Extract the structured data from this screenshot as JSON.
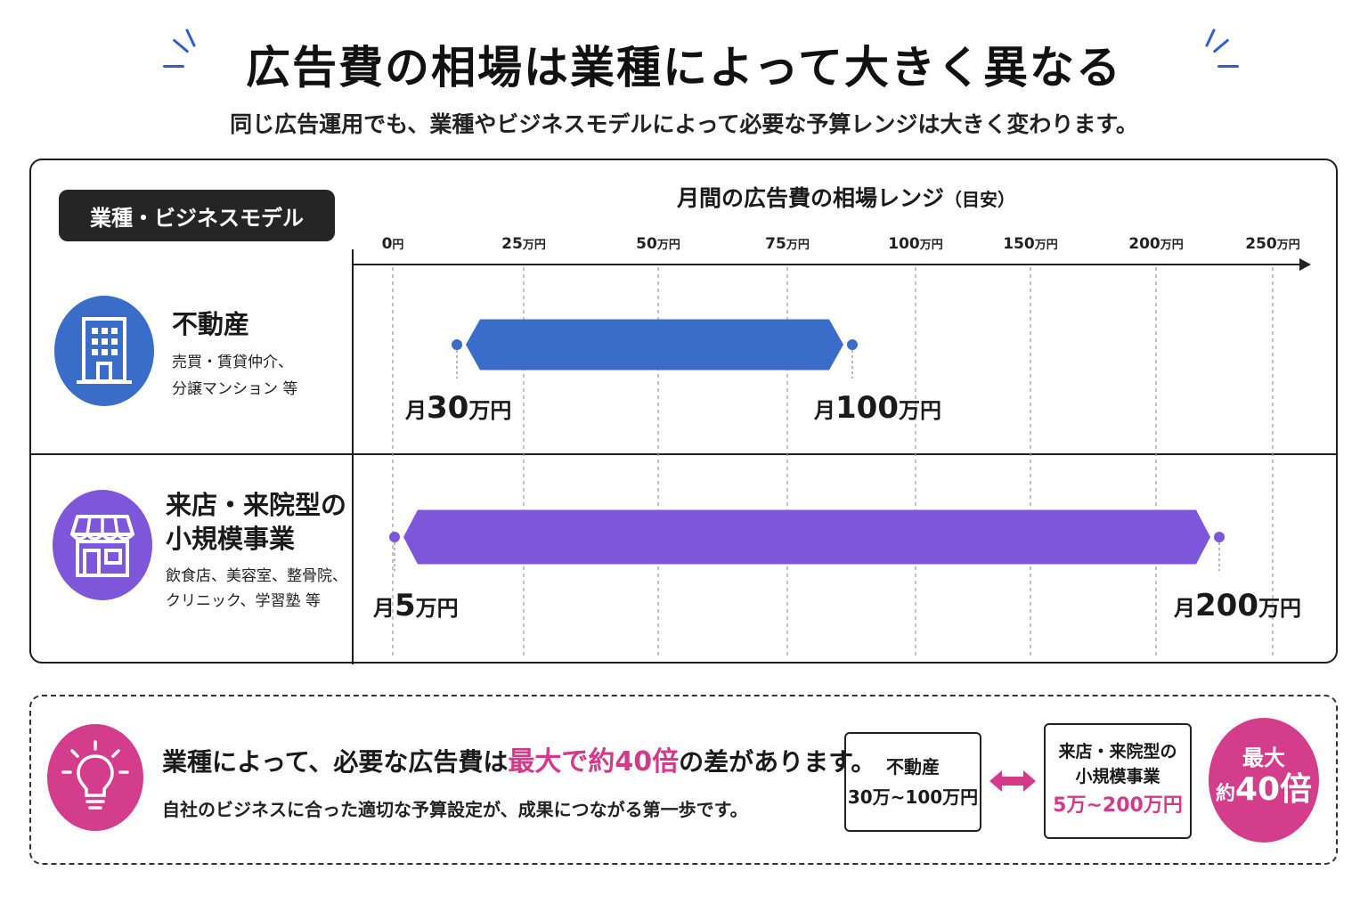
{
  "header": {
    "title": "広告費の相場は業種によって大きく異なる",
    "subtitle": "同じ広告運用でも、業種やビジネスモデルによって必要な予算レンジは大きく変わります。"
  },
  "category_header": "業種・ビジネスモデル",
  "axis_title_main": "月間の広告費の相場レンジ",
  "axis_title_note": "（目安）",
  "rows": [
    {
      "name": "不動産",
      "desc_line1": "売買・賃貸仲介、",
      "desc_line2": "分譲マンション 等",
      "icon": "building-icon",
      "min_prefix": "月",
      "min_num": "30",
      "min_unit": "万円",
      "max_prefix": "月",
      "max_num": "100",
      "max_unit": "万円"
    },
    {
      "name_line1": "来店・来院型の",
      "name_line2": "小規模事業",
      "desc_line1": "飲食店、美容室、整骨院、",
      "desc_line2": "クリニック、学習塾 等",
      "icon": "storefront-icon",
      "min_prefix": "月",
      "min_num": "5",
      "min_unit": "万円",
      "max_prefix": "月",
      "max_num": "200",
      "max_unit": "万円"
    }
  ],
  "chart_data": {
    "type": "bar",
    "orientation": "horizontal-range",
    "x_unit": "万円",
    "xlabel": "月間の広告費の相場レンジ（目安）",
    "x_ticks": [
      {
        "value": 0,
        "label": "0円"
      },
      {
        "value": 25,
        "label": "25万円"
      },
      {
        "value": 50,
        "label": "50万円"
      },
      {
        "value": 75,
        "label": "75万円"
      },
      {
        "value": 100,
        "label": "100万円"
      },
      {
        "value": 150,
        "label": "150万円"
      },
      {
        "value": 200,
        "label": "200万円"
      },
      {
        "value": 250,
        "label": "250万円"
      }
    ],
    "xlim": [
      0,
      250
    ],
    "x_scale": "piecewise (0–100 in 25 steps, then 150, 200, 250)",
    "grid": true,
    "categories": [
      "不動産",
      "来店・来院型の小規模事業"
    ],
    "series": [
      {
        "ranges": [
          [
            30,
            100
          ],
          [
            5,
            200
          ]
        ]
      }
    ],
    "colors": [
      "#3a6cc9",
      "#7e56da"
    ]
  },
  "insight": {
    "main_pre": "業種によって、必要な広告費は",
    "main_highlight": "最大で約40倍",
    "main_post": "の差があります。",
    "sub": "自社のビジネスに合った適切な予算設定が、成果につながる第一歩です。"
  },
  "comparison": {
    "left_title": "不動産",
    "left_range": "30万~100万円",
    "right_title_line1": "来店・来院型の",
    "right_title_line2": "小規模事業",
    "right_range": "5万~200万円"
  },
  "max_badge": {
    "top": "最大",
    "prefix": "約",
    "num": "40倍"
  },
  "colors": {
    "blue": "#3a6cc9",
    "purple": "#7e56da",
    "pink": "#d33a8a",
    "accent_spark": "#2f5fcf"
  }
}
